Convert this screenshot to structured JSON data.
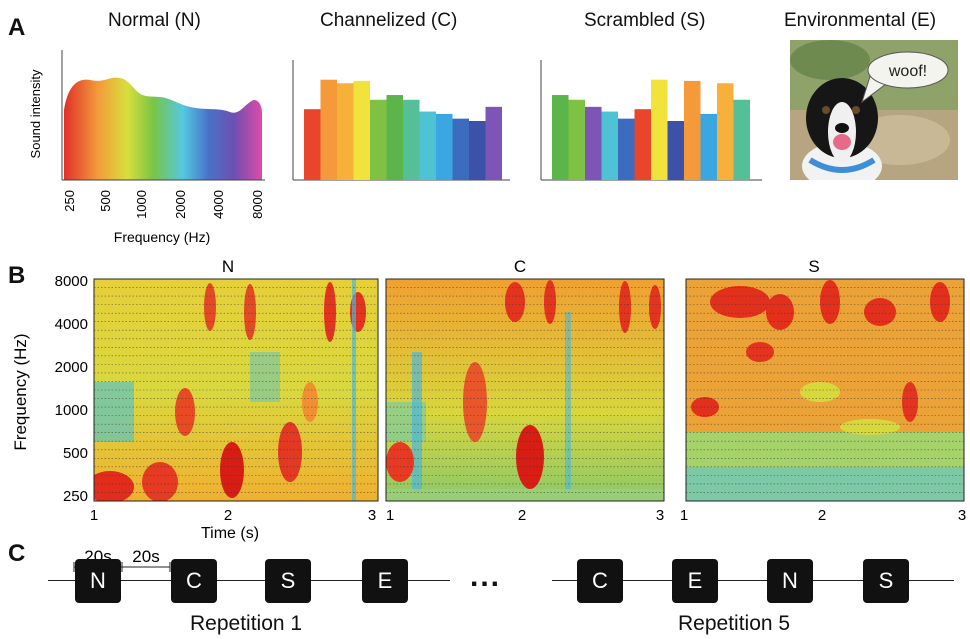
{
  "panel_a": {
    "letter": "A",
    "titles": {
      "normal": "Normal (N)",
      "channelized": "Channelized (C)",
      "scrambled": "Scrambled (S)",
      "environmental": "Environmental (E)"
    },
    "ylabel": "Sound intensity",
    "xlabel": "Frequency (Hz)",
    "xticks": [
      "250",
      "500",
      "1000",
      "2000",
      "4000",
      "8000"
    ],
    "speech_bubble": "woof!",
    "channelized_bar_colors": [
      "#e8452a",
      "#f49a3a",
      "#f7b13a",
      "#f2e23c",
      "#7fc243",
      "#5bb54b",
      "#55bf98",
      "#4fc3d6",
      "#3ba7e2",
      "#3c6cc0",
      "#3c52a8",
      "#7d55b6"
    ],
    "channelized_bar_levels": [
      0.6,
      0.85,
      0.82,
      0.84,
      0.68,
      0.72,
      0.68,
      0.58,
      0.56,
      0.52,
      0.5,
      0.62
    ],
    "scrambled_bar_colors": [
      "#5bb54b",
      "#7fc243",
      "#7d55b6",
      "#4fc3d6",
      "#3c6cc0",
      "#e8452a",
      "#f2e23c",
      "#3c52a8",
      "#f49a3a",
      "#3ba7e2",
      "#f7b13a",
      "#55bf98"
    ],
    "scrambled_bar_levels": [
      0.72,
      0.68,
      0.62,
      0.58,
      0.52,
      0.6,
      0.85,
      0.5,
      0.84,
      0.56,
      0.82,
      0.68
    ]
  },
  "panel_b": {
    "letter": "B",
    "ylabel": "Frequency (Hz)",
    "xlabel": "Time (s)",
    "yticks": [
      "8000",
      "4000",
      "2000",
      "1000",
      "500",
      "250"
    ],
    "xticks": [
      "1",
      "2",
      "3"
    ],
    "spectrograms": [
      {
        "title": "N"
      },
      {
        "title": "C"
      },
      {
        "title": "S"
      }
    ]
  },
  "panel_c": {
    "letter": "C",
    "duration_label_1": "20s",
    "duration_label_2": "20s",
    "repetition_1_blocks": [
      "N",
      "C",
      "S",
      "E"
    ],
    "repetition_5_blocks": [
      "C",
      "E",
      "N",
      "S"
    ],
    "ellipsis": "...",
    "repetition_1_label": "Repetition 1",
    "repetition_5_label": "Repetition 5"
  }
}
